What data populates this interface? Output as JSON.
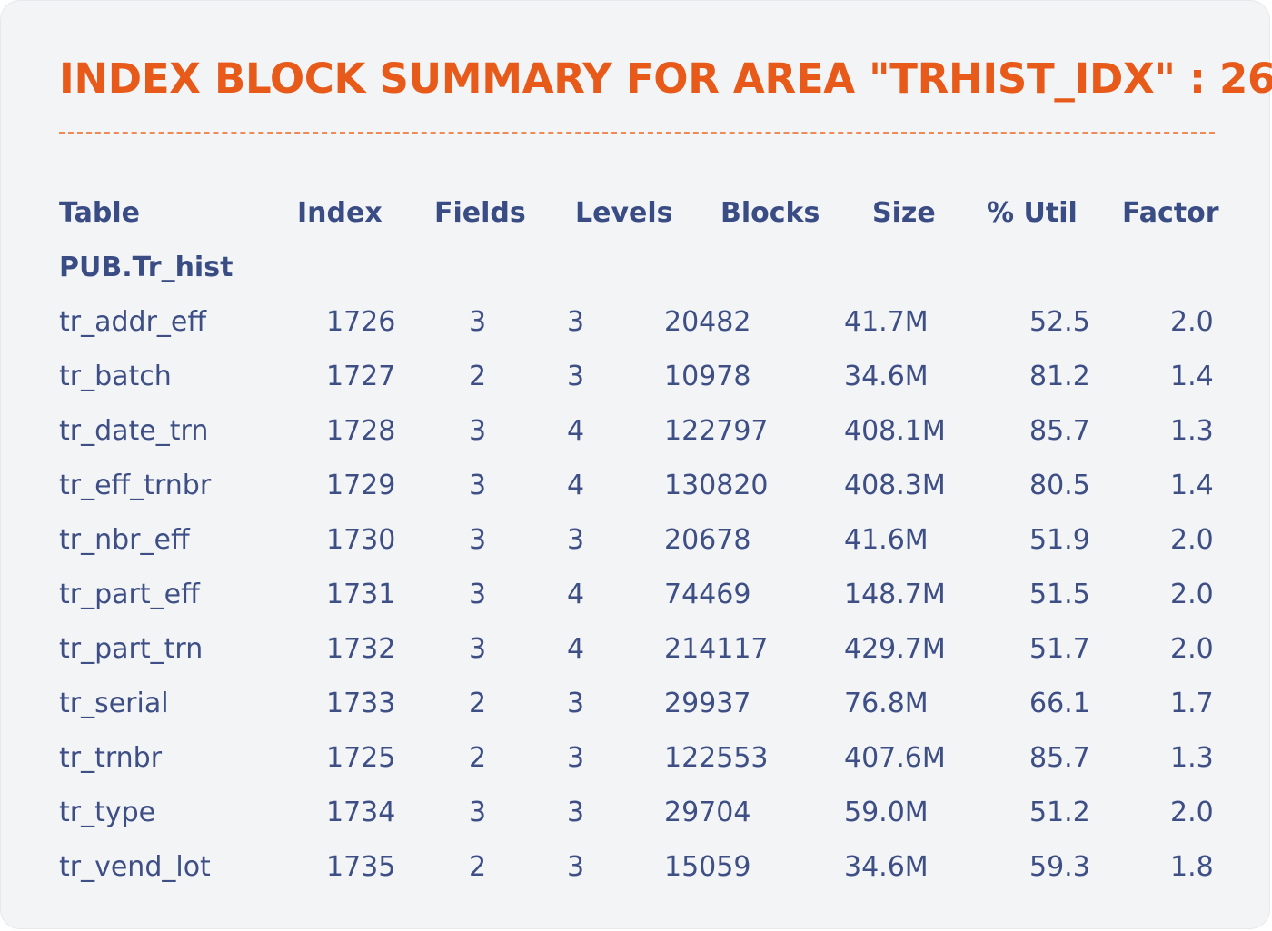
{
  "title": "INDEX BLOCK SUMMARY FOR AREA \"TRHIST_IDX\" : 26",
  "colors": {
    "accent": "#e85a1a",
    "text": "#3e4f86",
    "card_background": "#f3f4f6"
  },
  "table": {
    "headers": {
      "table": "Table",
      "index": "Index",
      "fields": "Fields",
      "levels": "Levels",
      "blocks": "Blocks",
      "size": "Size",
      "util": "% Util",
      "factor": "Factor"
    },
    "group_name": "PUB.Tr_hist",
    "rows": [
      {
        "name": "tr_addr_eff",
        "index": "1726",
        "fields": "3",
        "levels": "3",
        "blocks": "20482",
        "size": "41.7M",
        "util": "52.5",
        "factor": "2.0"
      },
      {
        "name": "tr_batch",
        "index": "1727",
        "fields": "2",
        "levels": "3",
        "blocks": "10978",
        "size": "34.6M",
        "util": "81.2",
        "factor": "1.4"
      },
      {
        "name": "tr_date_trn",
        "index": "1728",
        "fields": "3",
        "levels": "4",
        "blocks": "122797",
        "size": "408.1M",
        "util": "85.7",
        "factor": "1.3"
      },
      {
        "name": "tr_eff_trnbr",
        "index": "1729",
        "fields": "3",
        "levels": "4",
        "blocks": "130820",
        "size": "408.3M",
        "util": "80.5",
        "factor": "1.4"
      },
      {
        "name": "tr_nbr_eff",
        "index": "1730",
        "fields": "3",
        "levels": "3",
        "blocks": "20678",
        "size": "41.6M",
        "util": "51.9",
        "factor": "2.0"
      },
      {
        "name": "tr_part_eff",
        "index": "1731",
        "fields": "3",
        "levels": "4",
        "blocks": "74469",
        "size": "148.7M",
        "util": "51.5",
        "factor": "2.0"
      },
      {
        "name": "tr_part_trn",
        "index": "1732",
        "fields": "3",
        "levels": "4",
        "blocks": "214117",
        "size": "429.7M",
        "util": "51.7",
        "factor": "2.0"
      },
      {
        "name": "tr_serial",
        "index": "1733",
        "fields": "2",
        "levels": "3",
        "blocks": "29937",
        "size": "76.8M",
        "util": "66.1",
        "factor": "1.7"
      },
      {
        "name": "tr_trnbr",
        "index": "1725",
        "fields": "2",
        "levels": "3",
        "blocks": "122553",
        "size": "407.6M",
        "util": "85.7",
        "factor": "1.3"
      },
      {
        "name": "tr_type",
        "index": "1734",
        "fields": "3",
        "levels": "3",
        "blocks": "29704",
        "size": "59.0M",
        "util": "51.2",
        "factor": "2.0"
      },
      {
        "name": "tr_vend_lot",
        "index": "1735",
        "fields": "2",
        "levels": "3",
        "blocks": "15059",
        "size": "34.6M",
        "util": "59.3",
        "factor": "1.8"
      }
    ]
  }
}
